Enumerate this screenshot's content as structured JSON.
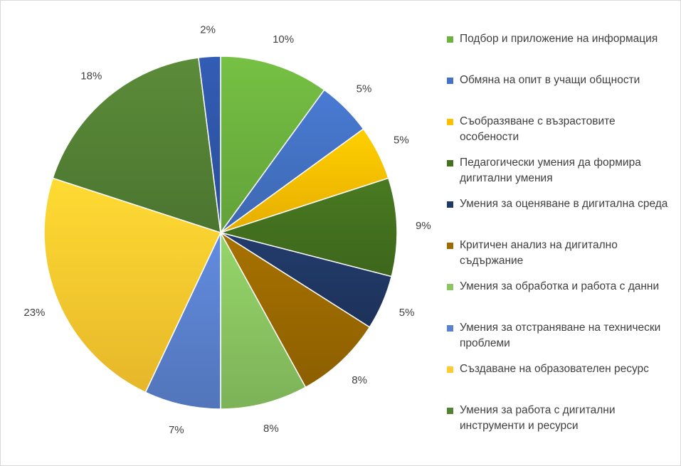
{
  "chart_data": {
    "type": "pie",
    "title": "",
    "legend_position": "right",
    "slices": [
      {
        "label": "Подбор и приложение на информация",
        "value": 10,
        "display": "10%",
        "color": "#6db33f"
      },
      {
        "label": "Обмяна на опит в учащи общности",
        "value": 5,
        "display": "5%",
        "color": "#4472c4"
      },
      {
        "label": "Съобразяване с възрастовите особености",
        "value": 5,
        "display": "5%",
        "color": "#ffc000"
      },
      {
        "label": "Педагогически умения да формира дигитални умения",
        "value": 9,
        "display": "9%",
        "color": "#44711f"
      },
      {
        "label": "Умения за оценяване в дигитална среда",
        "value": 5,
        "display": "5%",
        "color": "#203864"
      },
      {
        "label": "Критичен анализ на дигитално съдържание",
        "value": 8,
        "display": "8%",
        "color": "#9c6a00"
      },
      {
        "label": "Умения за обработка и работа с данни",
        "value": 8,
        "display": "8%",
        "color": "#8bc662"
      },
      {
        "label": "Умения за отстраняване на технически проблеми",
        "value": 7,
        "display": "7%",
        "color": "#5b82cf"
      },
      {
        "label": "Създаване на образователен ресурс",
        "value": 23,
        "display": "23%",
        "color": "#ffcb2f"
      },
      {
        "label": "Умения за работа с дигитални инструменти и ресурси",
        "value": 18,
        "display": "18%",
        "color": "#548235"
      },
      {
        "label": "",
        "value": 2,
        "display": "2%",
        "color": "#2f56a8"
      }
    ]
  },
  "legend": {
    "items": [
      {
        "label": "Подбор и приложение на информация",
        "color": "#6db33f"
      },
      {
        "label": "Обмяна на опит в учащи общности",
        "color": "#4472c4"
      },
      {
        "label": "Съобразяване с възрастовите особености",
        "color": "#ffc000"
      },
      {
        "label": "Педагогически умения да формира дигитални умения",
        "color": "#44711f"
      },
      {
        "label": "Умения за оценяване в дигитална среда",
        "color": "#203864"
      },
      {
        "label": "Критичен анализ на дигитално съдържание",
        "color": "#9c6a00"
      },
      {
        "label": "Умения за обработка и работа с данни",
        "color": "#8bc662"
      },
      {
        "label": "Умения за отстраняване на технически проблеми",
        "color": "#5b82cf"
      },
      {
        "label": "Създаване на образователен ресурс",
        "color": "#ffcb2f"
      },
      {
        "label": "Умения за работа с дигитални инструменти и ресурси",
        "color": "#548235"
      }
    ]
  }
}
